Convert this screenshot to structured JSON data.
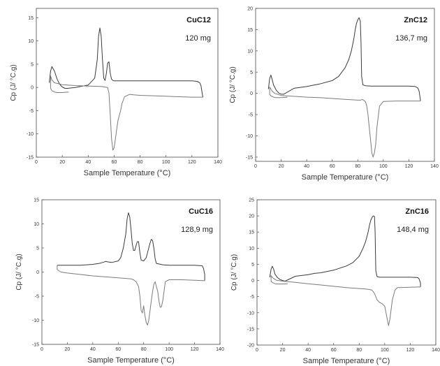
{
  "chart_data": [
    {
      "type": "line",
      "sample_label": "CuC12",
      "mass_label": "120 mg",
      "xlabel": "Sample Temperature (°C)",
      "ylabel": "Cp (J/ °C.g)",
      "xlim": [
        0,
        140
      ],
      "ylim": [
        -15,
        17
      ],
      "xticks": [
        "0",
        "20",
        "40",
        "60",
        "80",
        "100",
        "120",
        "140"
      ],
      "yticks": [
        "-15",
        "-10",
        "-5",
        "0",
        "5",
        "10",
        "15"
      ],
      "grid": false,
      "series": [
        {
          "x": [
            10,
            11,
            12,
            14,
            16,
            18,
            20,
            22,
            24,
            30,
            40,
            45,
            47,
            48,
            49,
            50,
            51,
            52,
            53,
            54,
            55,
            56,
            57,
            58,
            59,
            60,
            70,
            80,
            100,
            120,
            124,
            126,
            127,
            128,
            128.5,
            128.5
          ],
          "y": [
            1,
            3.5,
            4.5,
            3.5,
            1.8,
            0.7,
            0.1,
            -0.2,
            -0.2,
            0,
            0.5,
            2,
            6,
            11,
            12.8,
            11,
            6,
            2,
            1.5,
            3,
            5.2,
            5.5,
            3,
            1.8,
            1.5,
            1.4,
            1.4,
            1.4,
            1.4,
            1.4,
            1.3,
            1,
            0.3,
            -1.5,
            -2.1,
            -2.1
          ]
        },
        {
          "x": [
            128.5,
            120,
            110,
            100,
            90,
            80,
            75,
            72,
            68,
            66,
            65,
            64,
            63,
            62,
            61,
            60,
            59,
            58,
            57,
            56,
            55,
            50,
            40,
            30,
            20,
            14,
            12,
            11,
            11,
            12,
            14,
            16,
            20,
            25
          ],
          "y": [
            -2.1,
            -2.1,
            -2,
            -1.9,
            -1.8,
            -1.7,
            -1.6,
            -1.5,
            -2,
            -3.5,
            -5,
            -6,
            -7,
            -9,
            -11,
            -13,
            -13.5,
            -11,
            -6,
            -1.2,
            0,
            0.2,
            0.3,
            0.4,
            0.6,
            1,
            1.6,
            2.5,
            -0.2,
            -0.7,
            -1,
            -1.1,
            -1.1,
            -1
          ]
        }
      ]
    },
    {
      "type": "line",
      "sample_label": "ZnC12",
      "mass_label": "136,7 mg",
      "xlabel": "Sample Temperature (°C)",
      "ylabel": "Cp (J/ °C.g)",
      "xlim": [
        0,
        140
      ],
      "ylim": [
        -16,
        20
      ],
      "xticks": [
        "0",
        "20",
        "40",
        "60",
        "80",
        "100",
        "120",
        "140"
      ],
      "yticks": [
        "-15",
        "-10",
        "-5",
        "0",
        "5",
        "10",
        "15",
        "20"
      ],
      "grid": false,
      "series": [
        {
          "x": [
            10,
            11,
            12,
            13,
            14,
            16,
            18,
            20,
            22,
            30,
            40,
            50,
            60,
            65,
            70,
            73,
            75,
            77,
            78,
            79,
            80,
            81,
            82,
            82.5,
            83,
            84,
            86,
            90,
            100,
            110,
            120,
            125,
            127,
            128,
            129,
            129
          ],
          "y": [
            1,
            3.5,
            4.3,
            3.2,
            2,
            0.8,
            0.1,
            -0.2,
            -0.2,
            1.2,
            1.6,
            2.2,
            3,
            4,
            6,
            8,
            10,
            13,
            15,
            16.5,
            17.3,
            17.8,
            17,
            12,
            4,
            2,
            1.8,
            1.7,
            1.7,
            1.7,
            1.7,
            1.6,
            1.3,
            0.5,
            -1.5,
            -1.8
          ]
        },
        {
          "x": [
            129,
            120,
            110,
            100,
            97,
            95,
            94,
            93,
            92,
            91,
            90,
            89,
            88,
            87,
            86,
            85,
            84,
            83,
            82,
            80,
            70,
            60,
            50,
            40,
            30,
            20,
            15,
            13,
            12,
            11,
            11,
            12,
            14,
            16,
            20,
            25
          ],
          "y": [
            -1.8,
            -1.8,
            -1.8,
            -1.9,
            -3,
            -8,
            -12,
            -14,
            -15,
            -14,
            -11,
            -8,
            -5,
            -3,
            -2,
            -1.7,
            -1.5,
            -1.5,
            -1.6,
            -1.6,
            -1.4,
            -1.2,
            -1,
            -0.9,
            -0.7,
            -0.5,
            0,
            0.5,
            1,
            1.5,
            -0.2,
            -0.6,
            -0.9,
            -1,
            -1,
            -0.9
          ]
        }
      ]
    },
    {
      "type": "line",
      "sample_label": "CuC16",
      "mass_label": "128,9 mg",
      "xlabel": "Sample Temperature (°C)",
      "ylabel": "Cp (J/ °C.g)",
      "xlim": [
        0,
        140
      ],
      "ylim": [
        -15,
        15
      ],
      "xticks": [
        "0",
        "20",
        "40",
        "60",
        "80",
        "100",
        "120",
        "140"
      ],
      "yticks": [
        "-15",
        "-10",
        "-5",
        "0",
        "5",
        "10",
        "15"
      ],
      "grid": false,
      "series": [
        {
          "x": [
            12,
            20,
            30,
            40,
            45,
            48,
            50,
            52,
            55,
            60,
            62,
            64,
            66,
            67,
            68,
            69,
            70,
            71,
            72,
            73,
            74,
            75,
            76,
            77,
            78,
            80,
            82,
            84,
            85,
            86,
            87,
            88,
            89,
            90,
            95,
            100,
            110,
            120,
            126,
            127,
            128,
            128
          ],
          "y": [
            1.4,
            1.4,
            1.4,
            1.6,
            1.8,
            2,
            2.2,
            2.1,
            2,
            2.3,
            3,
            5,
            8,
            11,
            12.3,
            11.5,
            9,
            6,
            4.5,
            4.5,
            5.5,
            6.3,
            6.3,
            4,
            2.5,
            2.3,
            3,
            5,
            6,
            6.8,
            6.5,
            5,
            2.8,
            1.8,
            1.5,
            1.4,
            1.4,
            1.4,
            1.3,
            0.8,
            -0.5,
            -1.8
          ]
        },
        {
          "x": [
            128,
            120,
            110,
            100,
            97,
            96,
            95,
            94,
            93,
            92,
            91,
            90,
            89,
            88,
            87,
            86,
            85,
            84,
            83,
            82,
            81,
            80,
            79,
            78,
            77,
            76,
            74,
            72,
            70,
            65,
            60,
            50,
            40,
            30,
            20,
            15,
            12,
            12
          ],
          "y": [
            -1.8,
            -1.7,
            -1.6,
            -1.6,
            -2,
            -4,
            -6,
            -7.2,
            -7.3,
            -6,
            -4,
            -3,
            -2,
            -2.5,
            -4,
            -6,
            -8,
            -10,
            -11,
            -10.5,
            -9,
            -7,
            -8.5,
            -8,
            -5,
            -3,
            -2,
            -1.6,
            -1.4,
            -1.3,
            -1.2,
            -1,
            -0.8,
            -0.5,
            -0.2,
            0,
            0.5,
            1.4
          ]
        }
      ]
    },
    {
      "type": "line",
      "sample_label": "ZnC16",
      "mass_label": "148,4 mg",
      "xlabel": "Sample Temperature (°C)",
      "ylabel": "Cp (J/ °C.g)",
      "xlim": [
        0,
        140
      ],
      "ylim": [
        -20,
        25
      ],
      "xticks": [
        "0",
        "20",
        "40",
        "60",
        "80",
        "100",
        "120",
        "140"
      ],
      "yticks": [
        "-20",
        "-15",
        "-10",
        "-5",
        "0",
        "5",
        "10",
        "15",
        "20",
        "25"
      ],
      "grid": false,
      "series": [
        {
          "x": [
            10,
            11,
            12,
            13,
            14,
            16,
            18,
            20,
            22,
            30,
            40,
            45,
            50,
            60,
            70,
            75,
            80,
            83,
            85,
            87,
            88,
            89,
            90,
            91,
            92,
            92.5,
            93,
            94,
            96,
            100,
            110,
            120,
            126,
            127,
            128,
            128
          ],
          "y": [
            1,
            3.5,
            4.4,
            3.5,
            2,
            0.9,
            0.3,
            0,
            -0.2,
            1.3,
            1.8,
            2.2,
            2.4,
            3.2,
            4.5,
            5.5,
            7.5,
            10,
            12,
            15,
            17,
            18.5,
            19.5,
            20,
            19.8,
            15,
            3,
            1.2,
            1,
            1,
            1,
            1,
            0.9,
            0.4,
            -0.8,
            -2
          ]
        },
        {
          "x": [
            128,
            120,
            110,
            108,
            106,
            105,
            104,
            103,
            102,
            101,
            100,
            98,
            96,
            94,
            92,
            90,
            88,
            86,
            84,
            80,
            70,
            60,
            50,
            40,
            30,
            20,
            15,
            13,
            12,
            11,
            11,
            12,
            14,
            16,
            20,
            24
          ],
          "y": [
            -2,
            -2.1,
            -2.2,
            -3,
            -6,
            -9,
            -12,
            -14,
            -12,
            -10,
            -8,
            -7.2,
            -6.8,
            -6,
            -4,
            -3,
            -2.8,
            -2.7,
            -2.6,
            -2.5,
            -2.2,
            -1.8,
            -1.4,
            -1,
            -0.6,
            -0.2,
            0.1,
            0.6,
            1,
            1.5,
            -0.2,
            -0.6,
            -1,
            -1.1,
            -1.1,
            -1
          ]
        }
      ]
    }
  ]
}
